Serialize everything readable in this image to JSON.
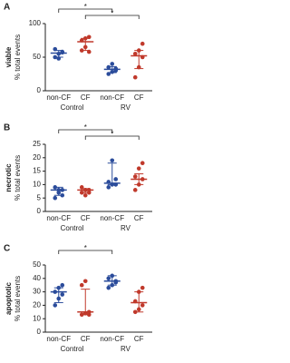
{
  "chart_data": [
    {
      "type": "dot",
      "panel": "A",
      "ylabel": [
        "viable",
        "% total events"
      ],
      "ylim": [
        0,
        100
      ],
      "yticks": [
        0,
        50,
        100
      ],
      "group_labels": [
        "Control",
        "RV"
      ],
      "groups": [
        {
          "category": "non-CF",
          "color": "#2b4c9b",
          "values": [
            50,
            55,
            58,
            62,
            48,
            57
          ],
          "median": 56,
          "lower": 50,
          "upper": 60
        },
        {
          "category": "CF",
          "color": "#c0392b",
          "values": [
            75,
            78,
            80,
            60,
            65,
            58
          ],
          "median": 73,
          "lower": 60,
          "upper": 78
        },
        {
          "category": "non-CF",
          "color": "#2b4c9b",
          "values": [
            25,
            28,
            33,
            35,
            40,
            30
          ],
          "median": 32,
          "lower": 27,
          "upper": 36
        },
        {
          "category": "CF",
          "color": "#c0392b",
          "values": [
            20,
            35,
            50,
            55,
            60,
            70
          ],
          "median": 52,
          "lower": 33,
          "upper": 60
        }
      ],
      "brackets": [
        {
          "from": 0,
          "to": 2,
          "label": "*"
        },
        {
          "from": 1,
          "to": 3,
          "label": "*"
        }
      ]
    },
    {
      "type": "dot",
      "panel": "B",
      "ylabel": [
        "necrotic",
        "% total events"
      ],
      "ylim": [
        0,
        25
      ],
      "yticks": [
        0,
        5,
        10,
        15,
        20,
        25
      ],
      "group_labels": [
        "Control",
        "RV"
      ],
      "groups": [
        {
          "category": "non-CF",
          "color": "#2b4c9b",
          "values": [
            5,
            7,
            8,
            9,
            8,
            6
          ],
          "median": 8,
          "lower": 6,
          "upper": 9
        },
        {
          "category": "CF",
          "color": "#c0392b",
          "values": [
            7,
            8,
            8,
            9,
            6,
            7
          ],
          "median": 8,
          "lower": 7,
          "upper": 8.5
        },
        {
          "category": "non-CF",
          "color": "#2b4c9b",
          "values": [
            9,
            10,
            10,
            11,
            19,
            12
          ],
          "median": 10.5,
          "lower": 10,
          "upper": 18
        },
        {
          "category": "CF",
          "color": "#c0392b",
          "values": [
            8,
            10,
            12,
            13,
            16,
            18
          ],
          "median": 12,
          "lower": 10,
          "upper": 14
        }
      ],
      "brackets": [
        {
          "from": 0,
          "to": 2,
          "label": "*"
        },
        {
          "from": 1,
          "to": 3,
          "label": "*"
        }
      ]
    },
    {
      "type": "dot",
      "panel": "C",
      "ylabel": [
        "apoptotic",
        "% total events"
      ],
      "ylim": [
        0,
        50
      ],
      "yticks": [
        0,
        10,
        20,
        30,
        40,
        50
      ],
      "group_labels": [
        "Control",
        "RV"
      ],
      "groups": [
        {
          "category": "non-CF",
          "color": "#2b4c9b",
          "values": [
            20,
            25,
            28,
            30,
            33,
            35
          ],
          "median": 30,
          "lower": 22,
          "upper": 33
        },
        {
          "category": "CF",
          "color": "#c0392b",
          "values": [
            13,
            14,
            15,
            35,
            38,
            13
          ],
          "median": 15,
          "lower": 13,
          "upper": 32
        },
        {
          "category": "non-CF",
          "color": "#2b4c9b",
          "values": [
            33,
            35,
            38,
            40,
            42,
            37
          ],
          "median": 38,
          "lower": 35,
          "upper": 42
        },
        {
          "category": "CF",
          "color": "#c0392b",
          "values": [
            15,
            17,
            20,
            23,
            30,
            33
          ],
          "median": 22,
          "lower": 15,
          "upper": 30
        }
      ],
      "brackets": [
        {
          "from": 0,
          "to": 2,
          "label": "*"
        }
      ]
    }
  ]
}
